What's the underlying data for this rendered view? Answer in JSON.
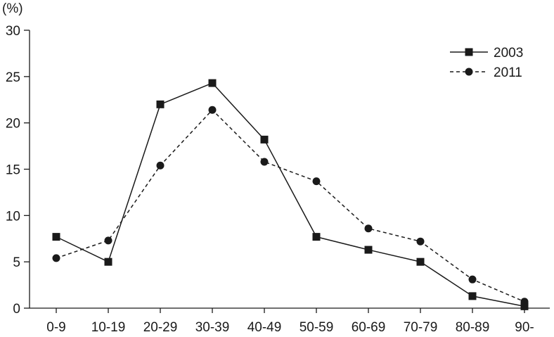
{
  "chart_data": {
    "type": "line",
    "title": "",
    "xlabel": "",
    "ylabel": "(%)",
    "ylim": [
      0,
      30
    ],
    "yticks": [
      0,
      5,
      10,
      15,
      20,
      25,
      30
    ],
    "grid": false,
    "legend_position": "top-right",
    "categories": [
      "0-9",
      "10-19",
      "20-29",
      "30-39",
      "40-49",
      "50-59",
      "60-69",
      "70-79",
      "80-89",
      "90-"
    ],
    "series": [
      {
        "name": "2003",
        "marker": "square",
        "line_style": "solid",
        "color": "#1a1a1a",
        "values": [
          7.7,
          5.0,
          22.0,
          24.3,
          18.2,
          7.7,
          6.3,
          5.0,
          1.3,
          0.2
        ]
      },
      {
        "name": "2011",
        "marker": "circle",
        "line_style": "dashed",
        "color": "#1a1a1a",
        "values": [
          5.4,
          7.3,
          15.4,
          21.4,
          15.8,
          13.7,
          8.6,
          7.2,
          3.1,
          0.7
        ]
      }
    ]
  }
}
